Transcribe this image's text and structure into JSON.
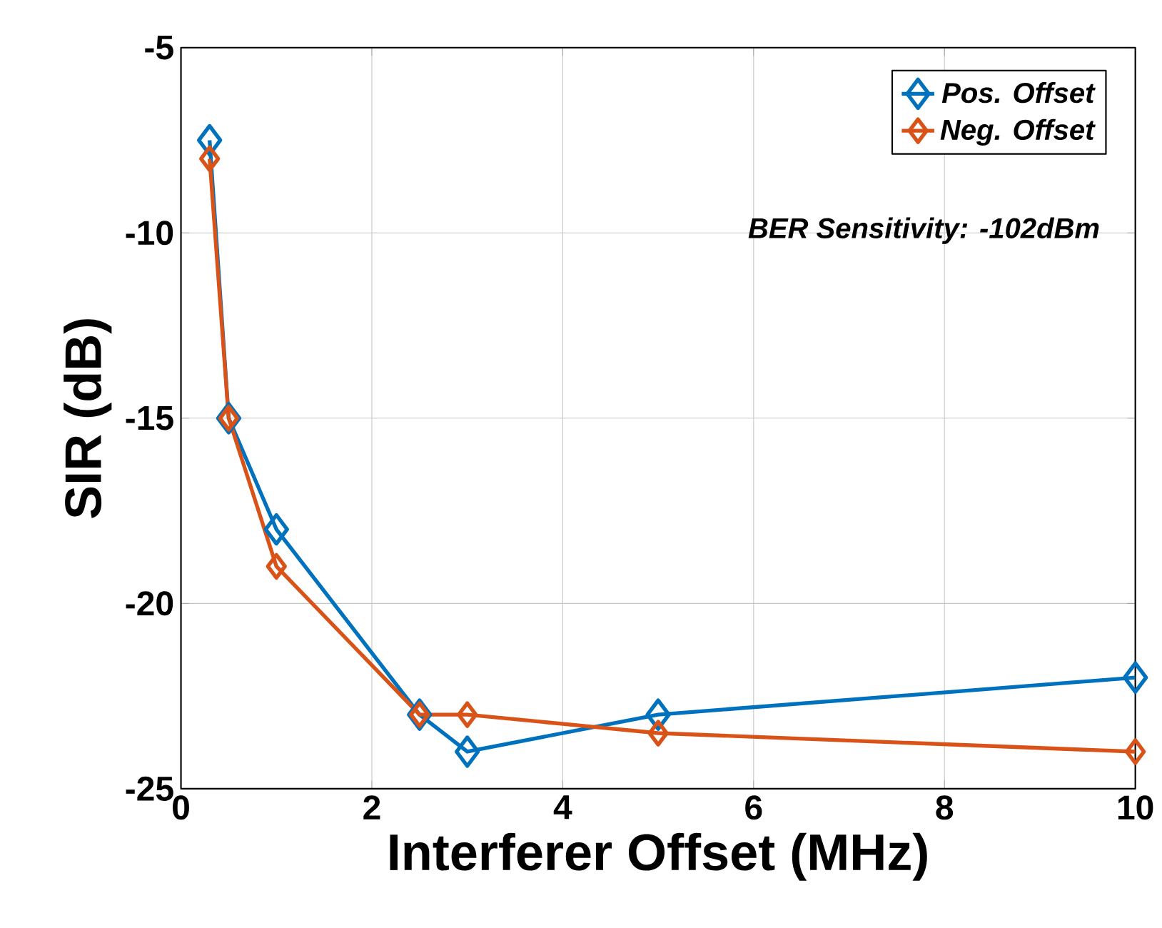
{
  "chart_data": {
    "type": "line",
    "xlabel": "Interferer Offset (MHz)",
    "ylabel": "SIR (dB)",
    "xlim": [
      0,
      10
    ],
    "xticks": [
      0,
      2,
      4,
      6,
      8,
      10
    ],
    "ylim": [
      -25,
      -5
    ],
    "yticks": [
      -25,
      -20,
      -15,
      -10,
      -5
    ],
    "grid": true,
    "legend": "top right",
    "marker": "diamond",
    "line_style": "solid",
    "annotations": [
      "BER Sensitivity: -102dBm"
    ],
    "series": [
      {
        "name": "Pos. Offset",
        "color": "#0072bd",
        "x": [
          0.3,
          0.5,
          1,
          2.5,
          3,
          5,
          10
        ],
        "values": [
          -7.5,
          -15,
          -18,
          -23,
          -24,
          -23,
          -22
        ]
      },
      {
        "name": "Neg. Offset",
        "color": "#d95319",
        "x": [
          0.3,
          0.5,
          1,
          2.5,
          3,
          5,
          10
        ],
        "values": [
          -8,
          -15,
          -19,
          -23,
          -23,
          -23.5,
          -24
        ]
      }
    ]
  }
}
